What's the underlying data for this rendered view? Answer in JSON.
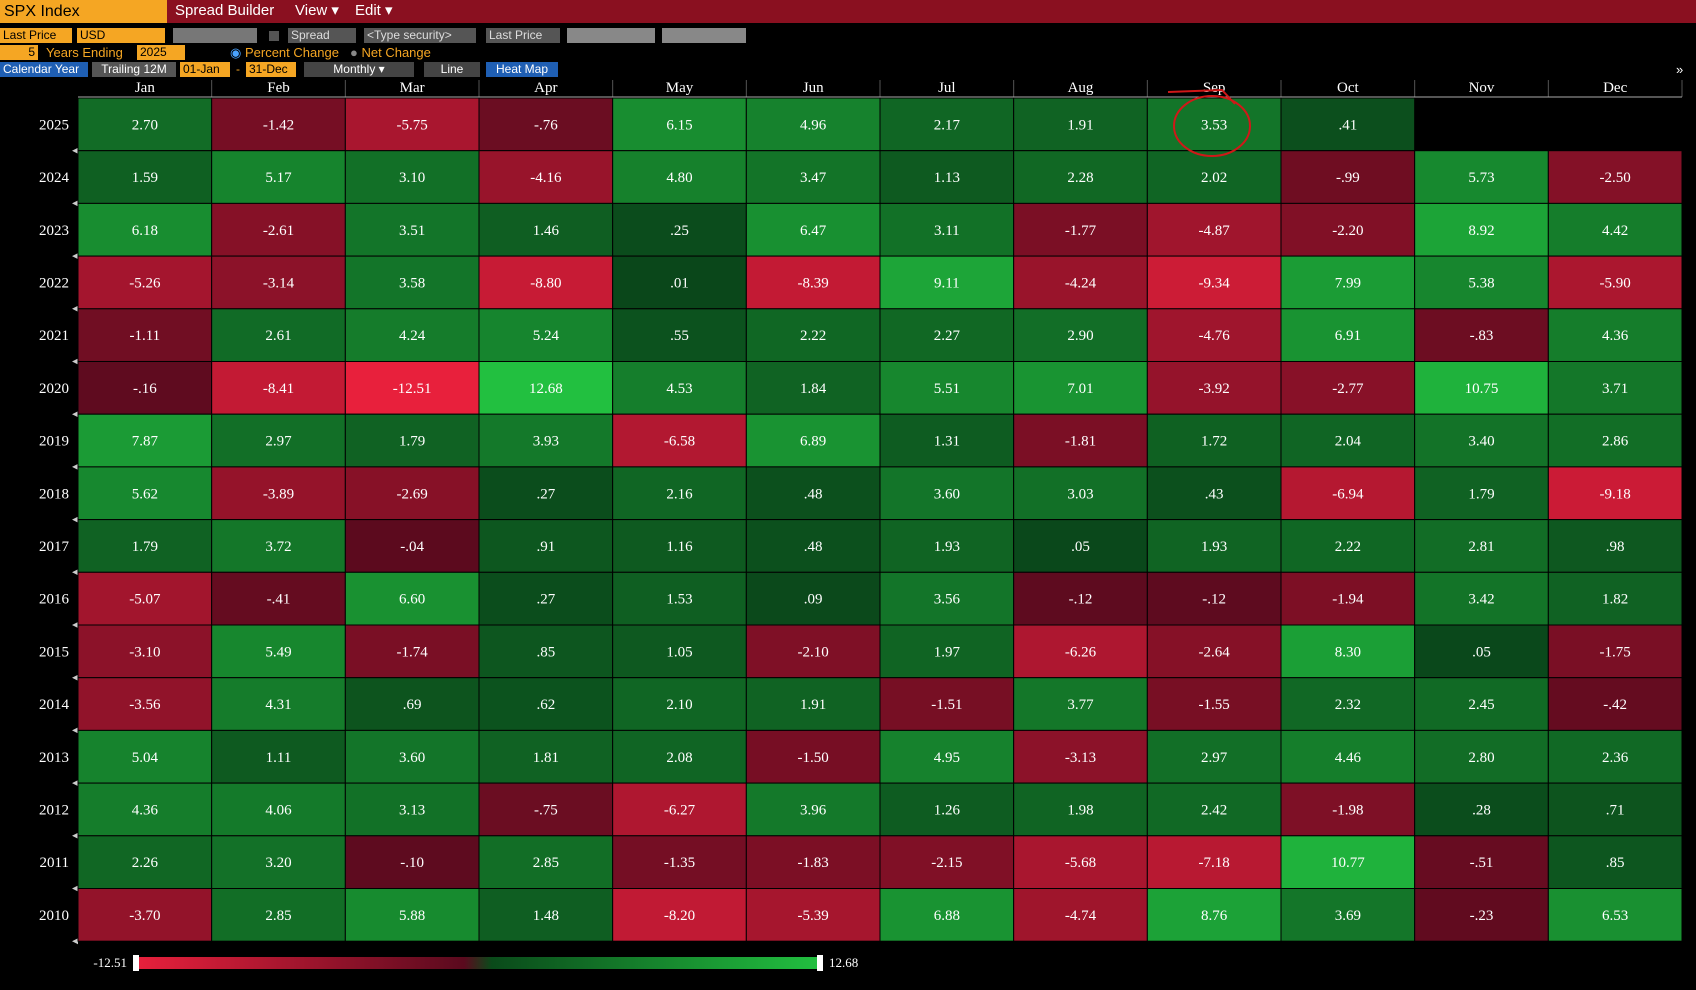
{
  "toolbar": {
    "security": "SPX Index",
    "menu": [
      "Spread Builder",
      "View",
      "Edit"
    ],
    "row2": {
      "field": "Last Price",
      "currency": "USD",
      "spread": "Spread",
      "security_input": "<Type security>",
      "field2": "Last Price"
    },
    "row3": {
      "years": "5",
      "years_label": "Years Ending",
      "end_year": "2025",
      "option1": "Percent Change",
      "option2": "Net Change"
    },
    "row4": {
      "calendar": "Calendar Year",
      "trailing": "Trailing 12M",
      "start": "01-Jan",
      "dash": "-",
      "end": "31-Dec",
      "period": "Monthly",
      "line": "Line",
      "heatmap": "Heat Map",
      "more": "»"
    }
  },
  "heatmap": {
    "columns": [
      "Jan",
      "Feb",
      "Mar",
      "Apr",
      "May",
      "Jun",
      "Jul",
      "Aug",
      "Sep",
      "Oct",
      "Nov",
      "Dec"
    ],
    "rows": [
      {
        "year": "2025",
        "values": [
          "2.70",
          "-1.42",
          "-5.75",
          "-.76",
          "6.15",
          "4.96",
          "2.17",
          "1.91",
          "3.53",
          ".41",
          null,
          null
        ]
      },
      {
        "year": "2024",
        "values": [
          "1.59",
          "5.17",
          "3.10",
          "-4.16",
          "4.80",
          "3.47",
          "1.13",
          "2.28",
          "2.02",
          "-.99",
          "5.73",
          "-2.50"
        ]
      },
      {
        "year": "2023",
        "values": [
          "6.18",
          "-2.61",
          "3.51",
          "1.46",
          ".25",
          "6.47",
          "3.11",
          "-1.77",
          "-4.87",
          "-2.20",
          "8.92",
          "4.42"
        ]
      },
      {
        "year": "2022",
        "values": [
          "-5.26",
          "-3.14",
          "3.58",
          "-8.80",
          ".01",
          "-8.39",
          "9.11",
          "-4.24",
          "-9.34",
          "7.99",
          "5.38",
          "-5.90"
        ]
      },
      {
        "year": "2021",
        "values": [
          "-1.11",
          "2.61",
          "4.24",
          "5.24",
          ".55",
          "2.22",
          "2.27",
          "2.90",
          "-4.76",
          "6.91",
          "-.83",
          "4.36"
        ]
      },
      {
        "year": "2020",
        "values": [
          "-.16",
          "-8.41",
          "-12.51",
          "12.68",
          "4.53",
          "1.84",
          "5.51",
          "7.01",
          "-3.92",
          "-2.77",
          "10.75",
          "3.71"
        ]
      },
      {
        "year": "2019",
        "values": [
          "7.87",
          "2.97",
          "1.79",
          "3.93",
          "-6.58",
          "6.89",
          "1.31",
          "-1.81",
          "1.72",
          "2.04",
          "3.40",
          "2.86"
        ]
      },
      {
        "year": "2018",
        "values": [
          "5.62",
          "-3.89",
          "-2.69",
          ".27",
          "2.16",
          ".48",
          "3.60",
          "3.03",
          ".43",
          "-6.94",
          "1.79",
          "-9.18"
        ]
      },
      {
        "year": "2017",
        "values": [
          "1.79",
          "3.72",
          "-.04",
          ".91",
          "1.16",
          ".48",
          "1.93",
          ".05",
          "1.93",
          "2.22",
          "2.81",
          ".98"
        ]
      },
      {
        "year": "2016",
        "values": [
          "-5.07",
          "-.41",
          "6.60",
          ".27",
          "1.53",
          ".09",
          "3.56",
          "-.12",
          "-.12",
          "-1.94",
          "3.42",
          "1.82"
        ]
      },
      {
        "year": "2015",
        "values": [
          "-3.10",
          "5.49",
          "-1.74",
          ".85",
          "1.05",
          "-2.10",
          "1.97",
          "-6.26",
          "-2.64",
          "8.30",
          ".05",
          "-1.75"
        ]
      },
      {
        "year": "2014",
        "values": [
          "-3.56",
          "4.31",
          ".69",
          ".62",
          "2.10",
          "1.91",
          "-1.51",
          "3.77",
          "-1.55",
          "2.32",
          "2.45",
          "-.42"
        ]
      },
      {
        "year": "2013",
        "values": [
          "5.04",
          "1.11",
          "3.60",
          "1.81",
          "2.08",
          "-1.50",
          "4.95",
          "-3.13",
          "2.97",
          "4.46",
          "2.80",
          "2.36"
        ]
      },
      {
        "year": "2012",
        "values": [
          "4.36",
          "4.06",
          "3.13",
          "-.75",
          "-6.27",
          "3.96",
          "1.26",
          "1.98",
          "2.42",
          "-1.98",
          ".28",
          ".71"
        ]
      },
      {
        "year": "2011",
        "values": [
          "2.26",
          "3.20",
          "-.10",
          "2.85",
          "-1.35",
          "-1.83",
          "-2.15",
          "-5.68",
          "-7.18",
          "10.77",
          "-.51",
          ".85"
        ]
      },
      {
        "year": "2010",
        "values": [
          "-3.70",
          "2.85",
          "5.88",
          "1.48",
          "-8.20",
          "-5.39",
          "6.88",
          "-4.74",
          "8.76",
          "3.69",
          "-.23",
          "6.53"
        ]
      }
    ],
    "scale": {
      "min": -12.51,
      "max": 12.68
    }
  }
}
